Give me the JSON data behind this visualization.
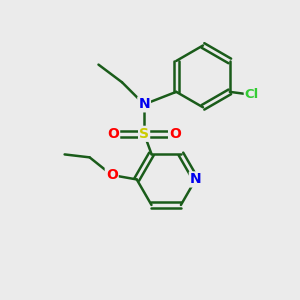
{
  "background_color": "#ebebeb",
  "atom_colors": {
    "N": "#0000ee",
    "O": "#ff0000",
    "S": "#cccc00",
    "Cl": "#33cc33",
    "C": "#1a5c1a",
    "H": "#000000"
  },
  "bond_color": "#1a5c1a",
  "bond_lw": 1.8,
  "figsize": [
    3.0,
    3.0
  ],
  "dpi": 100,
  "xlim": [
    0,
    10
  ],
  "ylim": [
    0,
    10
  ]
}
